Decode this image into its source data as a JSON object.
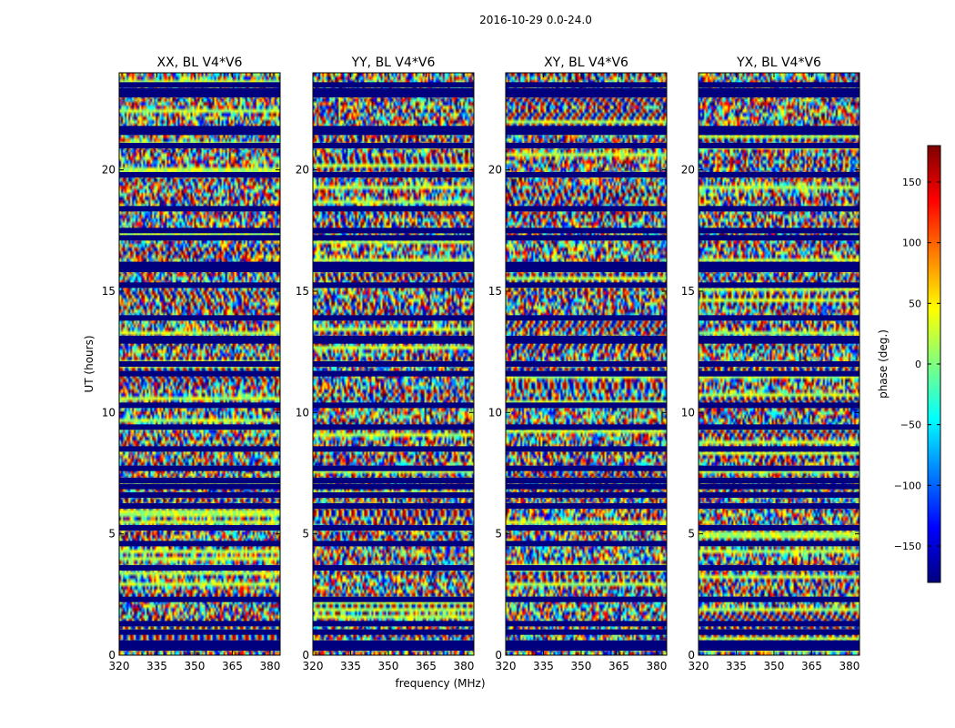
{
  "suptitle": "2016-10-29 0.0-24.0",
  "chart_data": {
    "type": "heatmap",
    "x": {
      "label": "frequency (MHz)",
      "range": [
        320,
        384
      ],
      "ticks": [
        320,
        335,
        350,
        365,
        380
      ]
    },
    "y": {
      "label": "UT (hours)",
      "range": [
        0,
        24
      ],
      "ticks": [
        0,
        5,
        10,
        15,
        20
      ]
    },
    "panels": [
      {
        "title": "XX, BL V4*V6"
      },
      {
        "title": "YY, BL V4*V6"
      },
      {
        "title": "XY, BL V4*V6"
      },
      {
        "title": "YX, BL V4*V6"
      }
    ],
    "colorbar": {
      "label": "phase (deg.)",
      "range": [
        -180,
        180
      ],
      "ticks": [
        -150,
        -100,
        -50,
        0,
        50,
        100,
        150
      ],
      "tick_labels": [
        "−150",
        "−100",
        "−50",
        "0",
        "50",
        "100",
        "150"
      ],
      "colormap": "jet",
      "colors": [
        "#00007f",
        "#0000ff",
        "#007fff",
        "#00ffff",
        "#7fff7f",
        "#ffff00",
        "#ff7f00",
        "#ff0000",
        "#7f0000"
      ]
    },
    "flagged_rows_ut": [
      0.3,
      0.5,
      0.95,
      1.3,
      2.3,
      3.6,
      4.6,
      5.25,
      6.15,
      6.6,
      6.95,
      7.2,
      7.7,
      8.5,
      9.4,
      10.3,
      11.6,
      12.0,
      12.95,
      13.05,
      13.9,
      15.25,
      15.9,
      16.1,
      17.2,
      17.5,
      18.4,
      19.8,
      21.0,
      21.55,
      21.7,
      23.1,
      23.25,
      23.5
    ]
  }
}
